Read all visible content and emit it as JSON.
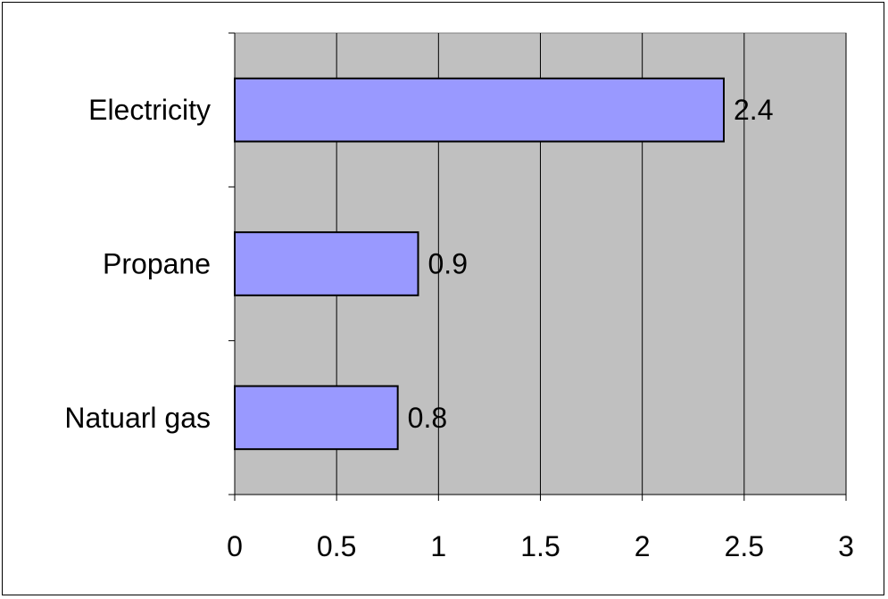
{
  "chart_data": {
    "type": "bar",
    "orientation": "horizontal",
    "categories": [
      "Electricity",
      "Propane",
      "Natuarl gas"
    ],
    "values": [
      2.4,
      0.9,
      0.8
    ],
    "data_labels": [
      "2.4",
      "0.9",
      "0.8"
    ],
    "xlim": [
      0,
      3
    ],
    "xticks": [
      0,
      0.5,
      1,
      1.5,
      2,
      2.5,
      3
    ],
    "xtick_labels": [
      "0",
      "0.5",
      "1",
      "1.5",
      "2",
      "2.5",
      "3"
    ],
    "title": "",
    "xlabel": "",
    "ylabel": "",
    "grid": "vertical",
    "legend": "none",
    "colors": {
      "plot_background": "#c0c0c0",
      "bar_fill": "#9999ff",
      "bar_stroke": "#000000",
      "grid": "#000000"
    }
  }
}
